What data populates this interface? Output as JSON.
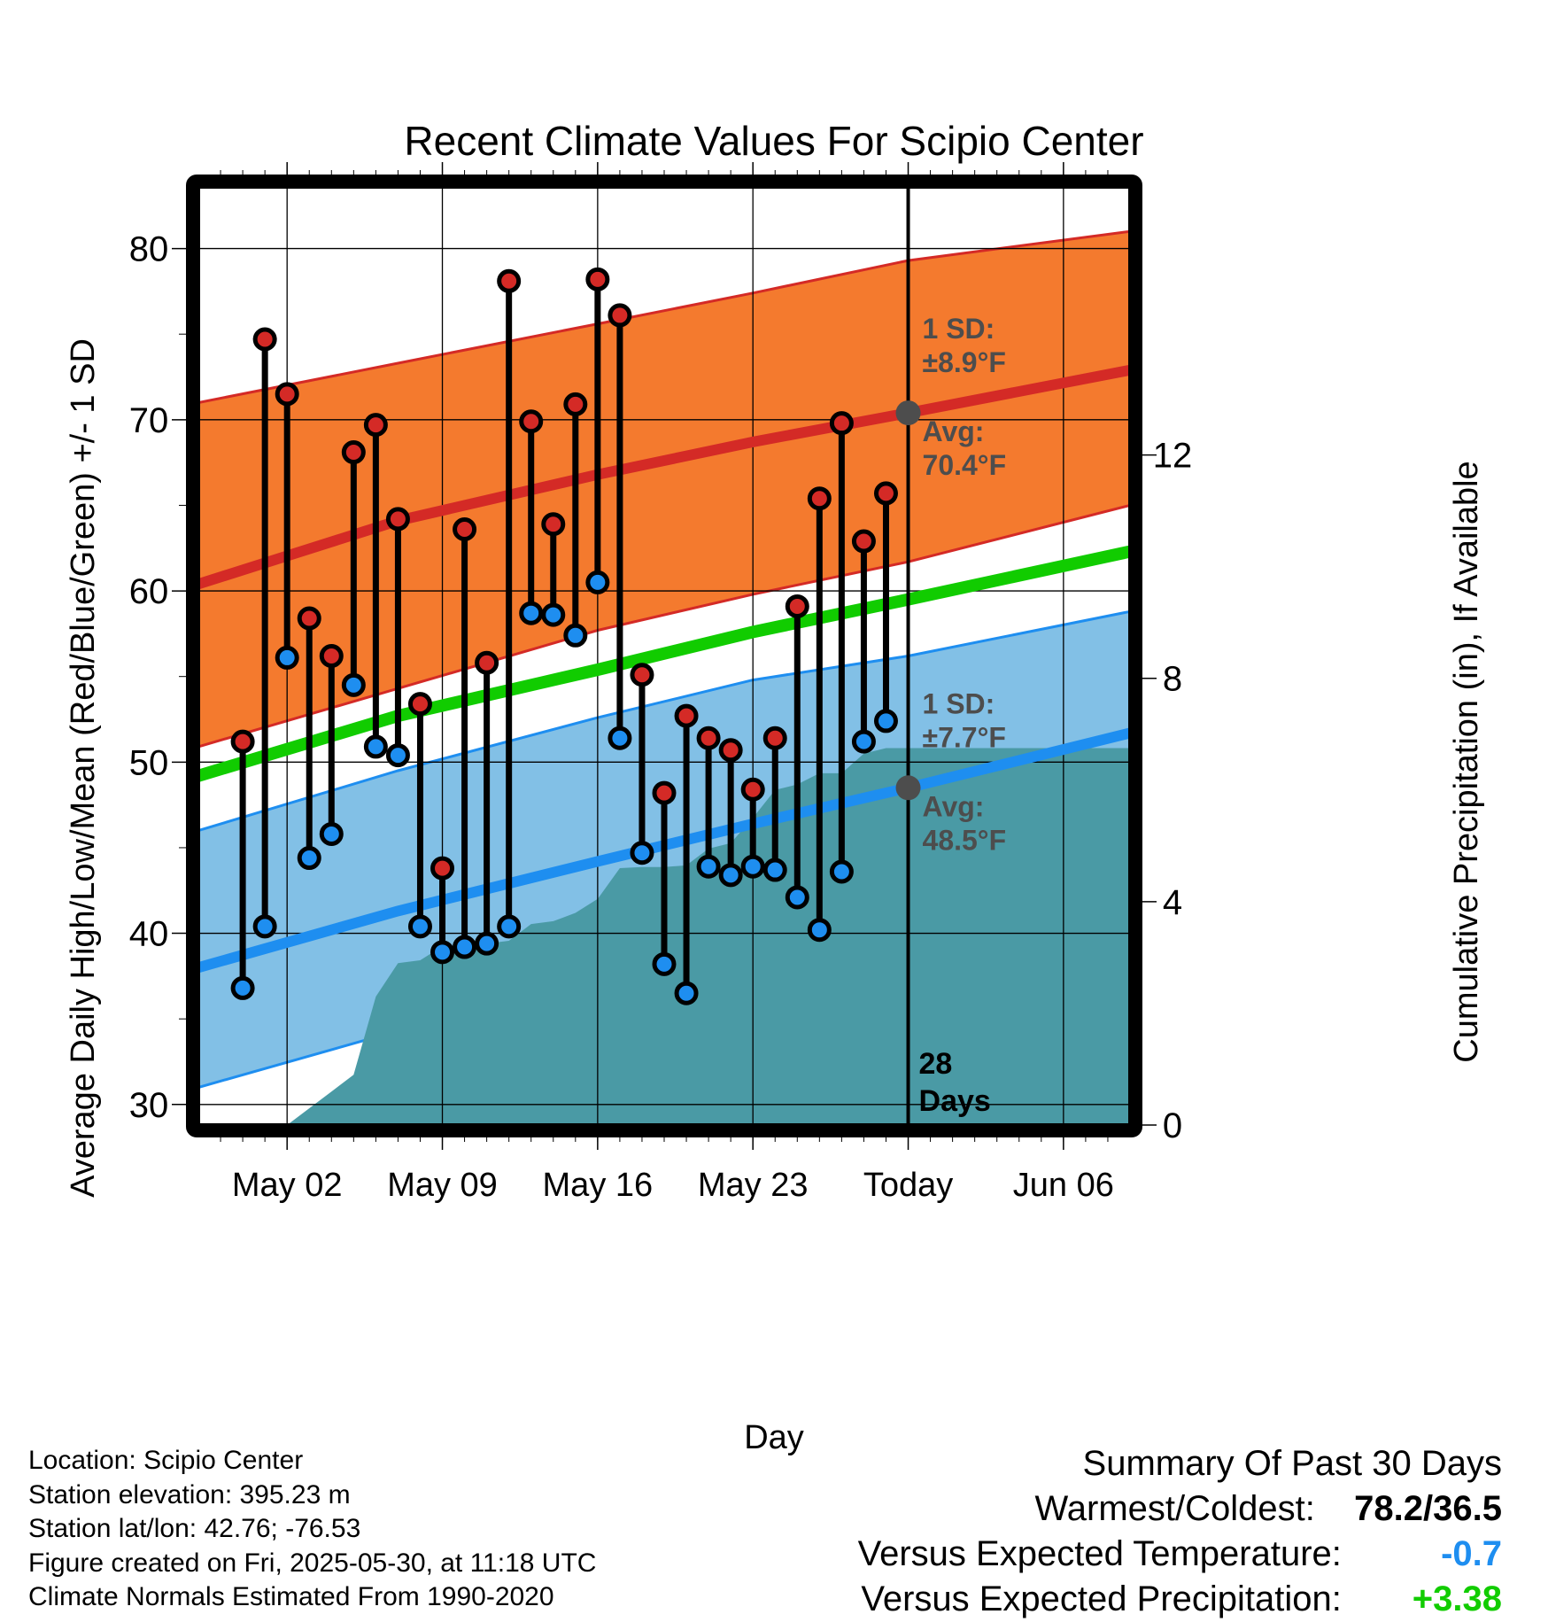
{
  "chart_data": {
    "type": "line",
    "title": "Recent Climate Values For Scipio Center",
    "xlabel": "Day",
    "ylabel": "Average Daily High/Low/Mean (Red/Blue/Green) +/- 1 SD",
    "y2label": "Cumulative Precipitation (in), If Available",
    "x_range": [
      "2025-04-28",
      "2025-06-09"
    ],
    "ylim": [
      28.8,
      83.6
    ],
    "y2lim": [
      0,
      16.8
    ],
    "x_ticks": [
      {
        "date": "2025-05-02",
        "label": "May 02"
      },
      {
        "date": "2025-05-09",
        "label": "May 09"
      },
      {
        "date": "2025-05-16",
        "label": "May 16"
      },
      {
        "date": "2025-05-23",
        "label": "May 23"
      },
      {
        "date": "2025-05-30",
        "label": "Today"
      },
      {
        "date": "2025-06-06",
        "label": "Jun 06"
      }
    ],
    "y_ticks": [
      "30",
      "40",
      "50",
      "60",
      "70",
      "80"
    ],
    "y2_ticks": [
      "0",
      "4",
      "8",
      "12"
    ],
    "grid": true,
    "today": "2025-05-30",
    "today_label": [
      "28",
      "Days"
    ],
    "normals": {
      "x": [
        "2025-04-28",
        "2025-05-07",
        "2025-05-16",
        "2025-05-23",
        "2025-05-30",
        "2025-06-09"
      ],
      "high_avg": [
        60.4,
        64.1,
        66.8,
        68.7,
        70.4,
        72.9
      ],
      "high_upper": [
        71.0,
        73.3,
        75.6,
        77.4,
        79.3,
        81.0
      ],
      "high_lower": [
        50.9,
        54.3,
        57.7,
        59.8,
        61.7,
        65.0
      ],
      "low_avg": [
        38.0,
        41.3,
        44.2,
        46.4,
        48.5,
        51.7
      ],
      "low_upper": [
        46.0,
        49.5,
        52.6,
        54.8,
        56.2,
        58.8
      ],
      "low_lower": [
        31.0,
        34.3,
        37.3,
        39.3,
        40.9,
        44.8
      ],
      "mean_avg": [
        49.2,
        52.7,
        55.4,
        57.6,
        59.5,
        62.3
      ]
    },
    "high_sd_label": [
      "1 SD:",
      "±8.9°F"
    ],
    "high_avg_label": [
      "Avg:",
      "70.4°F"
    ],
    "low_sd_label": [
      "1 SD:",
      "±7.7°F"
    ],
    "low_avg_label": [
      "Avg:",
      "48.5°F"
    ],
    "observed": {
      "dates": [
        "2025-04-30",
        "2025-05-01",
        "2025-05-02",
        "2025-05-03",
        "2025-05-04",
        "2025-05-05",
        "2025-05-06",
        "2025-05-07",
        "2025-05-08",
        "2025-05-09",
        "2025-05-10",
        "2025-05-11",
        "2025-05-12",
        "2025-05-13",
        "2025-05-14",
        "2025-05-15",
        "2025-05-16",
        "2025-05-17",
        "2025-05-18",
        "2025-05-19",
        "2025-05-20",
        "2025-05-21",
        "2025-05-22",
        "2025-05-23",
        "2025-05-24",
        "2025-05-25",
        "2025-05-26",
        "2025-05-27",
        "2025-05-28",
        "2025-05-29"
      ],
      "highs": [
        51.2,
        74.7,
        71.5,
        58.4,
        56.2,
        68.1,
        69.7,
        64.2,
        53.4,
        43.8,
        63.6,
        55.8,
        78.1,
        69.9,
        63.9,
        70.9,
        78.2,
        76.1,
        55.1,
        48.2,
        52.7,
        51.4,
        50.7,
        48.4,
        51.4,
        59.1,
        65.4,
        69.8,
        62.9,
        65.7
      ],
      "lows": [
        36.8,
        40.4,
        56.1,
        44.4,
        45.8,
        54.5,
        50.9,
        50.4,
        40.4,
        38.9,
        39.2,
        39.4,
        40.4,
        58.7,
        58.6,
        57.4,
        60.5,
        51.4,
        44.7,
        38.2,
        36.5,
        43.9,
        43.4,
        43.9,
        43.7,
        42.1,
        40.2,
        43.6,
        51.2,
        52.4
      ]
    },
    "precipitation": {
      "dates": [
        "2025-05-01",
        "2025-05-02",
        "2025-05-03",
        "2025-05-04",
        "2025-05-05",
        "2025-05-06",
        "2025-05-07",
        "2025-05-08",
        "2025-05-09",
        "2025-05-10",
        "2025-05-11",
        "2025-05-12",
        "2025-05-13",
        "2025-05-14",
        "2025-05-15",
        "2025-05-16",
        "2025-05-17",
        "2025-05-18",
        "2025-05-19",
        "2025-05-20",
        "2025-05-21",
        "2025-05-22",
        "2025-05-23",
        "2025-05-24",
        "2025-05-25",
        "2025-05-26",
        "2025-05-27",
        "2025-05-28",
        "2025-05-29",
        "2025-05-30",
        "2025-06-09"
      ],
      "cumulative": [
        0.0,
        0.0,
        0.3,
        0.6,
        0.9,
        2.3,
        2.9,
        2.95,
        3.2,
        3.2,
        3.25,
        3.3,
        3.6,
        3.65,
        3.8,
        4.05,
        4.6,
        4.62,
        4.62,
        4.65,
        4.95,
        5.05,
        5.5,
        6.0,
        6.1,
        6.3,
        6.3,
        6.65,
        6.75,
        6.75,
        6.75
      ]
    },
    "colors": {
      "high_band": "#f47a2e",
      "high_avg": "#d42a26",
      "low_band": "#82c0e6",
      "low_avg": "#1e8ef0",
      "mean": "#11cc00",
      "precip": "#4a9aa5",
      "high_dot": "#d42a26",
      "low_dot": "#1e8ef0",
      "label_gray": "#4d4d4d"
    }
  },
  "footer": {
    "location": "Location: Scipio Center",
    "elevation": "Station elevation: 395.23 m",
    "latlon": "Station lat/lon: 42.76; -76.53",
    "created": "Figure created on Fri, 2025-05-30, at 11:18 UTC",
    "normals": "Climate Normals Estimated From 1990-2020"
  },
  "summary": {
    "title": "Summary Of Past 30 Days",
    "warm_cold_label": "Warmest/Coldest:",
    "warm_cold_value": "78.2/36.5",
    "temp_label": "Versus Expected Temperature:",
    "temp_value": "-0.7",
    "temp_color": "#1e8ef0",
    "precip_label": "Versus Expected Precipitation:",
    "precip_value": "+3.38",
    "precip_color": "#11cc00"
  }
}
